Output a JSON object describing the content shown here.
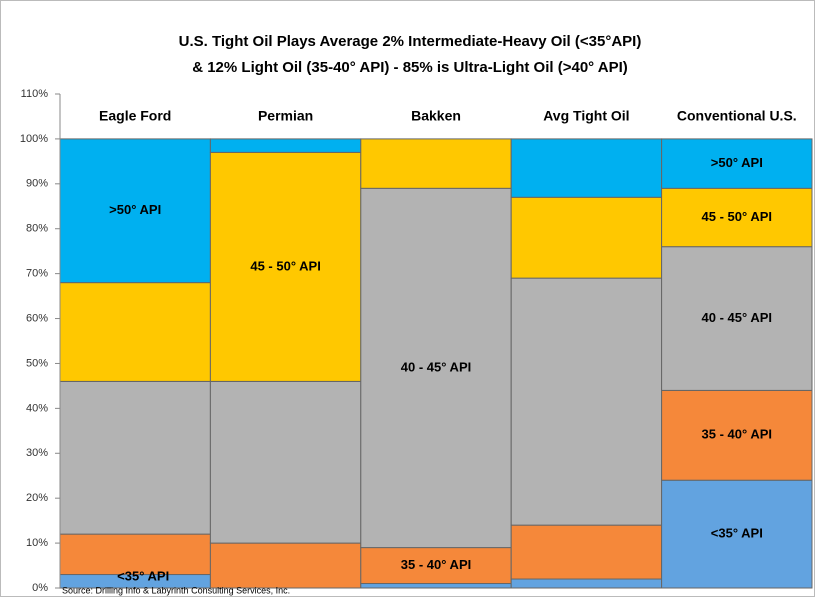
{
  "chart_data": {
    "type": "stacked_bar",
    "title": "U.S. Tight Oil Plays Average 2% Intermediate-Heavy Oil (<35°API)",
    "subtitle": "& 12% Light Oil (35-40° API) - 85% is Ultra-Light Oil (>40°  API)",
    "source": "Source:  Drilling Info & Labyrinth Consulting Services, Inc.",
    "categories": [
      "Eagle Ford",
      "Permian",
      "Bakken",
      "Avg Tight Oil",
      "Conventional U.S."
    ],
    "series": [
      {
        "name": "<35° API",
        "color": "#62a3e0",
        "values": [
          3,
          0,
          1,
          2,
          24
        ]
      },
      {
        "name": "35 - 40° API",
        "color": "#f5883a",
        "values": [
          9,
          10,
          8,
          12,
          20
        ]
      },
      {
        "name": "40 - 45° API",
        "color": "#b3b3b3",
        "values": [
          34,
          36,
          80,
          55,
          32
        ]
      },
      {
        "name": "45 - 50° API",
        "color": "#ffc800",
        "values": [
          22,
          51,
          11,
          18,
          13
        ]
      },
      {
        "name": ">50° API",
        "color": "#00b0f0",
        "values": [
          32,
          3,
          0,
          13,
          11
        ]
      }
    ],
    "ylim": [
      0,
      110
    ],
    "yticks": [
      {
        "value": 0,
        "label": "0%"
      },
      {
        "value": 10,
        "label": "10%"
      },
      {
        "value": 20,
        "label": "20%"
      },
      {
        "value": 30,
        "label": "30%"
      },
      {
        "value": 40,
        "label": "40%"
      },
      {
        "value": 50,
        "label": "50%"
      },
      {
        "value": 60,
        "label": "60%"
      },
      {
        "value": 70,
        "label": "70%"
      },
      {
        "value": 80,
        "label": "80%"
      },
      {
        "value": 90,
        "label": "90%"
      },
      {
        "value": 100,
        "label": "100%"
      },
      {
        "value": 110,
        "label": "110%"
      }
    ]
  }
}
